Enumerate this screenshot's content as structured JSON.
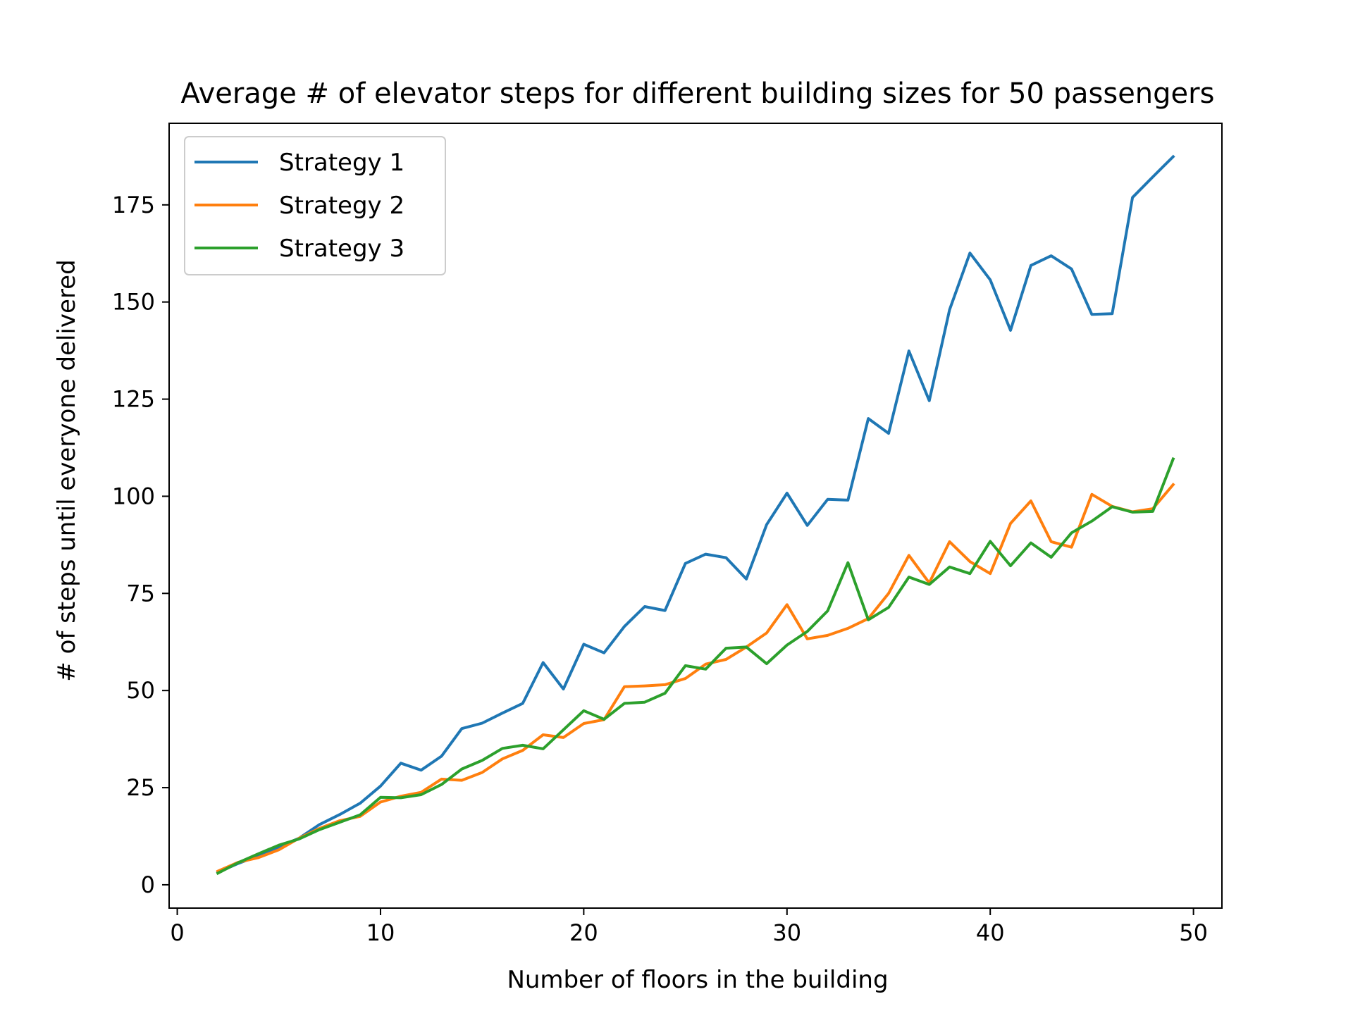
{
  "chart_data": {
    "type": "line",
    "title": "Average # of elevator steps for different building sizes for 50 passengers",
    "xlabel": "Number of floors in the building",
    "ylabel": "# of steps until everyone delivered",
    "xlim": [
      -0.4,
      51.4
    ],
    "ylim": [
      -6.0,
      196.0
    ],
    "xticks": [
      0,
      10,
      20,
      30,
      40,
      50
    ],
    "yticks": [
      0,
      25,
      50,
      75,
      100,
      125,
      150,
      175
    ],
    "grid": false,
    "legend_position": "top-left",
    "x": [
      2,
      3,
      4,
      5,
      6,
      7,
      8,
      9,
      10,
      11,
      12,
      13,
      14,
      15,
      16,
      17,
      18,
      19,
      20,
      21,
      22,
      23,
      24,
      25,
      26,
      27,
      28,
      29,
      30,
      31,
      32,
      33,
      34,
      35,
      36,
      37,
      38,
      39,
      40,
      41,
      42,
      43,
      44,
      45,
      46,
      47,
      48,
      49
    ],
    "series": [
      {
        "name": "Strategy 1",
        "color": "#1f77b4",
        "values": [
          3.2,
          5.5,
          7.5,
          9.7,
          12.0,
          15.5,
          18.1,
          21.0,
          25.4,
          31.3,
          29.5,
          33.1,
          40.2,
          41.6,
          44.2,
          46.7,
          57.2,
          50.4,
          61.9,
          59.7,
          66.5,
          71.6,
          70.6,
          82.7,
          85.1,
          84.2,
          78.7,
          92.7,
          100.8,
          92.5,
          99.2,
          99.0,
          120.0,
          116.2,
          137.4,
          124.6,
          148.0,
          162.6,
          155.7,
          142.7,
          159.4,
          161.9,
          158.5,
          146.8,
          147.0,
          176.9,
          182.2,
          187.4
        ]
      },
      {
        "name": "Strategy 2",
        "color": "#ff7f0e",
        "values": [
          3.5,
          5.8,
          7.0,
          9.0,
          12.0,
          14.5,
          16.5,
          17.6,
          21.3,
          22.8,
          23.8,
          27.2,
          26.9,
          28.9,
          32.4,
          34.6,
          38.6,
          37.9,
          41.5,
          42.5,
          51.0,
          51.2,
          51.5,
          53.1,
          56.8,
          58.0,
          61.2,
          64.8,
          72.1,
          63.3,
          64.2,
          66.0,
          68.5,
          75.0,
          84.8,
          77.7,
          88.3,
          83.2,
          80.1,
          93.0,
          98.8,
          88.3,
          86.9,
          100.5,
          97.4,
          96.0,
          96.8,
          103.0
        ]
      },
      {
        "name": "Strategy 3",
        "color": "#2ca02c",
        "values": [
          3.0,
          5.7,
          8.0,
          10.2,
          11.8,
          14.2,
          16.1,
          18.0,
          22.5,
          22.4,
          23.2,
          25.8,
          29.8,
          32.0,
          35.1,
          35.9,
          35.0,
          39.9,
          44.8,
          42.6,
          46.7,
          47.0,
          49.3,
          56.4,
          55.5,
          60.9,
          61.2,
          56.9,
          61.7,
          65.2,
          70.5,
          82.9,
          68.2,
          71.4,
          79.2,
          77.3,
          81.8,
          80.1,
          88.4,
          82.1,
          88.0,
          84.3,
          90.6,
          93.6,
          97.3,
          95.9,
          96.1,
          109.6
        ]
      }
    ]
  }
}
